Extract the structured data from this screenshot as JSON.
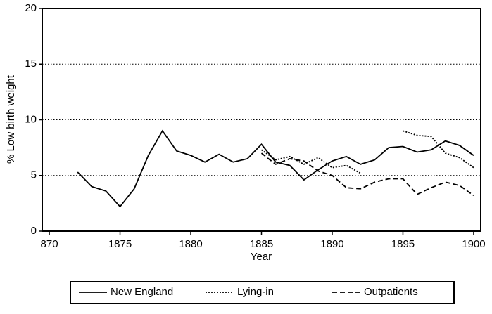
{
  "chart_data": {
    "type": "line",
    "y_label": "% Low birth weight",
    "x_label": "Year",
    "x": [
      1872,
      1873,
      1874,
      1875,
      1876,
      1877,
      1878,
      1879,
      1880,
      1881,
      1882,
      1883,
      1884,
      1885,
      1886,
      1887,
      1888,
      1889,
      1890,
      1891,
      1892,
      1893,
      1894,
      1895,
      1896,
      1897,
      1898,
      1899,
      1900
    ],
    "series": [
      {
        "name": "New England",
        "color": "#000000",
        "dash": "solid",
        "values": [
          5.3,
          4.0,
          3.6,
          2.2,
          3.8,
          6.8,
          9.0,
          7.2,
          6.8,
          6.2,
          6.9,
          6.2,
          6.5,
          7.8,
          6.2,
          5.9,
          4.6,
          5.5,
          6.3,
          6.7,
          6.0,
          6.4,
          7.5,
          7.6,
          7.1,
          7.3,
          8.1,
          7.7,
          6.8
        ]
      },
      {
        "name": "Lying-in",
        "color": "#000000",
        "dash": "dotted",
        "values": [
          null,
          null,
          null,
          null,
          null,
          null,
          null,
          null,
          null,
          null,
          null,
          null,
          null,
          7.3,
          6.4,
          6.7,
          6.0,
          6.6,
          5.7,
          5.9,
          5.2,
          null,
          null,
          9.0,
          8.6,
          8.5,
          7.0,
          6.6,
          5.7
        ]
      },
      {
        "name": "Outpatients",
        "color": "#000000",
        "dash": "dashed",
        "values": [
          null,
          null,
          null,
          null,
          null,
          null,
          null,
          null,
          null,
          null,
          null,
          null,
          null,
          7.0,
          6.0,
          6.5,
          6.3,
          5.4,
          5.0,
          3.9,
          3.8,
          4.4,
          4.7,
          4.7,
          3.3,
          3.9,
          4.4,
          4.1,
          3.2
        ]
      }
    ],
    "xlim": [
      1869.5,
      1900.5
    ],
    "xticks": [
      {
        "value": 1870,
        "label": "870"
      },
      1875,
      1880,
      1885,
      1890,
      1895,
      1900
    ],
    "ylim": [
      0,
      20
    ],
    "yticks": [
      0,
      5,
      10,
      15,
      20
    ],
    "grid": true,
    "legend": "bottom"
  }
}
